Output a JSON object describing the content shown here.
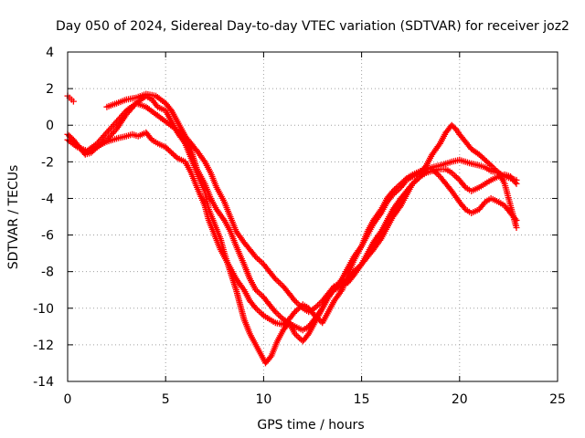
{
  "chart_data": {
    "type": "scatter",
    "title": "Day 050 of 2024, Sidereal Day-to-day VTEC variation (SDTVAR) for receiver joz2",
    "xlabel": "GPS time / hours",
    "ylabel": "SDTVAR / TECUs",
    "xlim": [
      0,
      25
    ],
    "ylim": [
      -14,
      4
    ],
    "x_ticks": [
      0,
      5,
      10,
      15,
      20,
      25
    ],
    "y_ticks": [
      -14,
      -12,
      -10,
      -8,
      -6,
      -4,
      -2,
      0,
      2,
      4
    ],
    "grid": true,
    "marker": "+",
    "color": "#ff0000",
    "series": [
      {
        "x": [
          0.0,
          0.3,
          0.6,
          0.9,
          1.2,
          1.5,
          1.8,
          2.0,
          2.3,
          2.6,
          3.0,
          3.3,
          3.6,
          4.0,
          4.3,
          4.6,
          5.0,
          5.3,
          5.6,
          6.0,
          6.3,
          6.6,
          7.0,
          7.2,
          7.5,
          7.8,
          8.0,
          8.3,
          8.6,
          9.0,
          9.3,
          9.6,
          10.0,
          10.3,
          10.6,
          11.0,
          11.3,
          11.6,
          12.0,
          12.3,
          12.6,
          13.0,
          13.3,
          13.6,
          14.0,
          14.3,
          14.6,
          15.0,
          15.3,
          15.6,
          16.0,
          16.3,
          16.6,
          17.0,
          17.3,
          17.6,
          18.0,
          18.3,
          18.6,
          19.0,
          19.3,
          19.6,
          20.0,
          20.3,
          20.6,
          21.0,
          21.3,
          21.6,
          22.0,
          22.3,
          22.6,
          22.9
        ],
        "y": [
          -0.5,
          -0.8,
          -1.2,
          -1.6,
          -1.5,
          -1.2,
          -1.0,
          -0.9,
          -0.8,
          -0.7,
          -0.6,
          -0.5,
          -0.6,
          -0.4,
          -0.8,
          -1.0,
          -1.2,
          -1.5,
          -1.8,
          -2.0,
          -2.6,
          -3.4,
          -4.4,
          -5.2,
          -6.0,
          -6.8,
          -7.2,
          -7.8,
          -8.4,
          -9.0,
          -9.6,
          -10.0,
          -10.4,
          -10.6,
          -10.8,
          -10.9,
          -10.6,
          -10.2,
          -9.8,
          -10.0,
          -10.4,
          -10.8,
          -10.2,
          -9.6,
          -9.0,
          -8.2,
          -7.4,
          -6.6,
          -5.8,
          -5.2,
          -4.6,
          -4.0,
          -3.6,
          -3.2,
          -2.9,
          -2.7,
          -2.5,
          -2.4,
          -2.3,
          -2.2,
          -2.1,
          -2.0,
          -1.9,
          -2.0,
          -2.1,
          -2.2,
          -2.3,
          -2.5,
          -2.6,
          -2.8,
          -2.9,
          -3.0
        ]
      },
      {
        "x": [
          1.0,
          1.5,
          2.0,
          2.5,
          3.0,
          3.5,
          4.0,
          4.3,
          4.6,
          5.0,
          5.3,
          5.6,
          6.0,
          6.3,
          6.6,
          7.0,
          7.2,
          7.5,
          7.8,
          8.0,
          8.3,
          8.6,
          8.8,
          9.0,
          9.3,
          9.6,
          9.9,
          10.1,
          10.4,
          10.7,
          11.0,
          11.3,
          11.6,
          12.0,
          12.3,
          12.6,
          13.0,
          13.3,
          13.6,
          14.0,
          14.3,
          14.6,
          15.0,
          15.3,
          15.6,
          16.0,
          16.3,
          16.6,
          17.0,
          17.3,
          17.6,
          18.0,
          18.3,
          18.6,
          19.0,
          19.3,
          19.6,
          19.8,
          20.0,
          20.3,
          20.6,
          21.0,
          21.3,
          21.6,
          22.0,
          22.3,
          22.6,
          22.9
        ],
        "y": [
          -1.5,
          -1.2,
          -0.8,
          -0.2,
          0.6,
          1.2,
          1.6,
          1.4,
          1.0,
          0.8,
          0.2,
          -0.4,
          -1.0,
          -1.8,
          -2.6,
          -3.6,
          -4.6,
          -5.4,
          -6.2,
          -7.0,
          -8.0,
          -9.0,
          -9.8,
          -10.6,
          -11.4,
          -12.0,
          -12.6,
          -13.0,
          -12.6,
          -11.8,
          -11.2,
          -10.8,
          -11.4,
          -11.8,
          -11.4,
          -10.8,
          -10.0,
          -9.4,
          -9.0,
          -8.4,
          -7.8,
          -7.2,
          -6.6,
          -6.0,
          -5.4,
          -4.8,
          -4.2,
          -3.8,
          -3.4,
          -3.0,
          -2.8,
          -2.6,
          -2.2,
          -1.6,
          -1.0,
          -0.4,
          0.0,
          -0.2,
          -0.5,
          -0.9,
          -1.3,
          -1.6,
          -1.9,
          -2.2,
          -2.6,
          -3.2,
          -4.4,
          -5.6
        ]
      },
      {
        "x": [
          2.0,
          2.5,
          3.0,
          3.5,
          4.0,
          4.5,
          5.0,
          5.3,
          5.6,
          6.0,
          6.3,
          6.6,
          7.0,
          7.3,
          7.6,
          8.0,
          8.3,
          8.6,
          9.0,
          9.3,
          9.6,
          10.0,
          10.3,
          10.6,
          11.0,
          11.3,
          11.6,
          12.0,
          12.3,
          12.6,
          13.0,
          13.3,
          13.6,
          14.0,
          14.3,
          14.6,
          15.0,
          15.3,
          15.6,
          16.0,
          16.3,
          16.6,
          17.0,
          17.3,
          17.6,
          18.0,
          18.3,
          18.6,
          19.0,
          19.3,
          19.6,
          20.0,
          20.3,
          20.6,
          21.0,
          21.3,
          21.6,
          22.0,
          22.3,
          22.6,
          22.9
        ],
        "y": [
          1.0,
          1.2,
          1.4,
          1.5,
          1.7,
          1.6,
          1.2,
          0.8,
          0.2,
          -0.6,
          -1.4,
          -2.4,
          -3.2,
          -4.0,
          -4.6,
          -5.2,
          -5.8,
          -6.6,
          -7.6,
          -8.4,
          -9.0,
          -9.4,
          -9.8,
          -10.2,
          -10.6,
          -10.8,
          -11.0,
          -11.2,
          -11.0,
          -10.6,
          -10.0,
          -9.4,
          -9.0,
          -8.8,
          -8.6,
          -8.2,
          -7.6,
          -7.0,
          -6.4,
          -5.8,
          -5.2,
          -4.6,
          -4.0,
          -3.6,
          -3.2,
          -2.8,
          -2.6,
          -2.5,
          -2.4,
          -2.4,
          -2.6,
          -3.0,
          -3.4,
          -3.6,
          -3.4,
          -3.2,
          -3.0,
          -2.8,
          -2.7,
          -2.8,
          -3.2
        ]
      },
      {
        "x": [
          0.0,
          0.5,
          1.0,
          1.5,
          2.0,
          2.5,
          3.0,
          3.5,
          4.0,
          4.5,
          5.0,
          5.5,
          6.0,
          6.3,
          6.6,
          7.0,
          7.3,
          7.6,
          8.0,
          8.3,
          8.6,
          9.0,
          9.3,
          9.6,
          10.0,
          10.3,
          10.6,
          11.0,
          11.3,
          11.6,
          12.0,
          12.3,
          12.6,
          13.0,
          13.3,
          13.6,
          14.0,
          14.3,
          14.6,
          15.0,
          15.3,
          15.6,
          16.0,
          16.3,
          16.6,
          17.0,
          17.3,
          17.6,
          18.0,
          18.3,
          18.6,
          19.0,
          19.3,
          19.6,
          20.0,
          20.3,
          20.6,
          21.0,
          21.3,
          21.6,
          22.0,
          22.3,
          22.6,
          22.9
        ],
        "y": [
          -0.8,
          -1.2,
          -1.4,
          -1.0,
          -0.4,
          0.2,
          0.8,
          1.2,
          1.0,
          0.6,
          0.2,
          -0.2,
          -0.6,
          -1.0,
          -1.4,
          -2.0,
          -2.6,
          -3.4,
          -4.2,
          -5.0,
          -5.8,
          -6.4,
          -6.8,
          -7.2,
          -7.6,
          -8.0,
          -8.4,
          -8.8,
          -9.2,
          -9.6,
          -10.0,
          -10.2,
          -10.0,
          -9.6,
          -9.2,
          -8.8,
          -8.6,
          -8.4,
          -8.0,
          -7.6,
          -7.2,
          -6.8,
          -6.2,
          -5.6,
          -5.0,
          -4.4,
          -3.8,
          -3.2,
          -2.8,
          -2.4,
          -2.4,
          -2.8,
          -3.2,
          -3.6,
          -4.2,
          -4.6,
          -4.8,
          -4.6,
          -4.2,
          -4.0,
          -4.2,
          -4.4,
          -4.8,
          -5.2
        ]
      },
      {
        "x": [
          0.0,
          0.1,
          0.2,
          0.3
        ],
        "y": [
          1.6,
          1.5,
          1.4,
          1.3
        ]
      }
    ]
  }
}
